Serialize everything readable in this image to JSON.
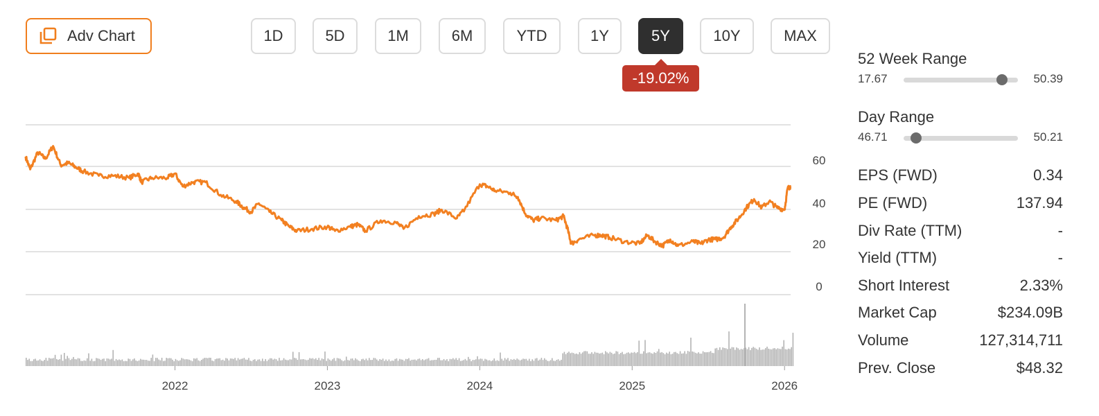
{
  "toolbar": {
    "adv_chart_label": "Adv Chart",
    "ranges": [
      "1D",
      "5D",
      "1M",
      "6M",
      "YTD",
      "1Y",
      "5Y",
      "10Y",
      "MAX"
    ],
    "active_range": "5Y",
    "change": "-19.02%"
  },
  "colors": {
    "accent": "#f07e1d",
    "price_line": "#f28021",
    "volume": "#b3b3b3",
    "negative": "#c0392b"
  },
  "chart_data": {
    "type": "line",
    "y_ticks": [
      0,
      20,
      40,
      60
    ],
    "ylim": [
      -3,
      77
    ],
    "x_ticks": [
      "2022",
      "2023",
      "2024",
      "2025",
      "2026"
    ],
    "xlim": [
      2021.02,
      2026.04
    ],
    "grid": true,
    "price_series": {
      "x": [
        2021.02,
        2021.05,
        2021.1,
        2021.15,
        2021.2,
        2021.25,
        2021.3,
        2021.35,
        2021.4,
        2021.5,
        2021.6,
        2021.7,
        2021.76,
        2021.78,
        2021.85,
        2021.95,
        2022.0,
        2022.05,
        2022.12,
        2022.2,
        2022.3,
        2022.4,
        2022.45,
        2022.5,
        2022.55,
        2022.62,
        2022.7,
        2022.75,
        2022.8,
        2022.9,
        2023.0,
        2023.05,
        2023.15,
        2023.2,
        2023.25,
        2023.35,
        2023.45,
        2023.5,
        2023.6,
        2023.7,
        2023.75,
        2023.85,
        2023.9,
        2024.0,
        2024.05,
        2024.1,
        2024.2,
        2024.25,
        2024.3,
        2024.35,
        2024.4,
        2024.5,
        2024.55,
        2024.58,
        2024.6,
        2024.65,
        2024.75,
        2024.8,
        2024.85,
        2024.95,
        2025.05,
        2025.1,
        2025.15,
        2025.2,
        2025.25,
        2025.3,
        2025.4,
        2025.45,
        2025.5,
        2025.55,
        2025.6,
        2025.65,
        2025.7,
        2025.75,
        2025.8,
        2025.85,
        2025.9,
        2025.95,
        2026.0,
        2026.02,
        2026.04
      ],
      "y": [
        62,
        56,
        64,
        61,
        67,
        58,
        59,
        57,
        55,
        53,
        53,
        52,
        54,
        50,
        52,
        52,
        54,
        48,
        50,
        50,
        44,
        41,
        38,
        36,
        40,
        36,
        32,
        29,
        27,
        28,
        29,
        27,
        29,
        30,
        27,
        32,
        31,
        28,
        34,
        35,
        37,
        33,
        37,
        49,
        48,
        46,
        45,
        43,
        35,
        32,
        33,
        32,
        34,
        27,
        21,
        23,
        25,
        25,
        24,
        22,
        21,
        25,
        22,
        20,
        23,
        20,
        22,
        21,
        23,
        23,
        24,
        29,
        33,
        38,
        42,
        38,
        41,
        38,
        37,
        47,
        48
      ]
    },
    "volume_series": {
      "note": ""
    }
  },
  "stats": {
    "week52": {
      "label": "52 Week Range",
      "low": "17.67",
      "high": "50.39",
      "position": 0.86
    },
    "day": {
      "label": "Day Range",
      "low": "46.71",
      "high": "50.21",
      "position": 0.11
    },
    "rows": [
      {
        "label": "EPS (FWD)",
        "value": "0.34"
      },
      {
        "label": "PE (FWD)",
        "value": "137.94"
      },
      {
        "label": "Div Rate (TTM)",
        "value": "-"
      },
      {
        "label": "Yield (TTM)",
        "value": "-"
      },
      {
        "label": "Short Interest",
        "value": "2.33%"
      },
      {
        "label": "Market Cap",
        "value": "$234.09B"
      },
      {
        "label": "Volume",
        "value": "127,314,711"
      },
      {
        "label": "Prev. Close",
        "value": "$48.32"
      }
    ]
  }
}
